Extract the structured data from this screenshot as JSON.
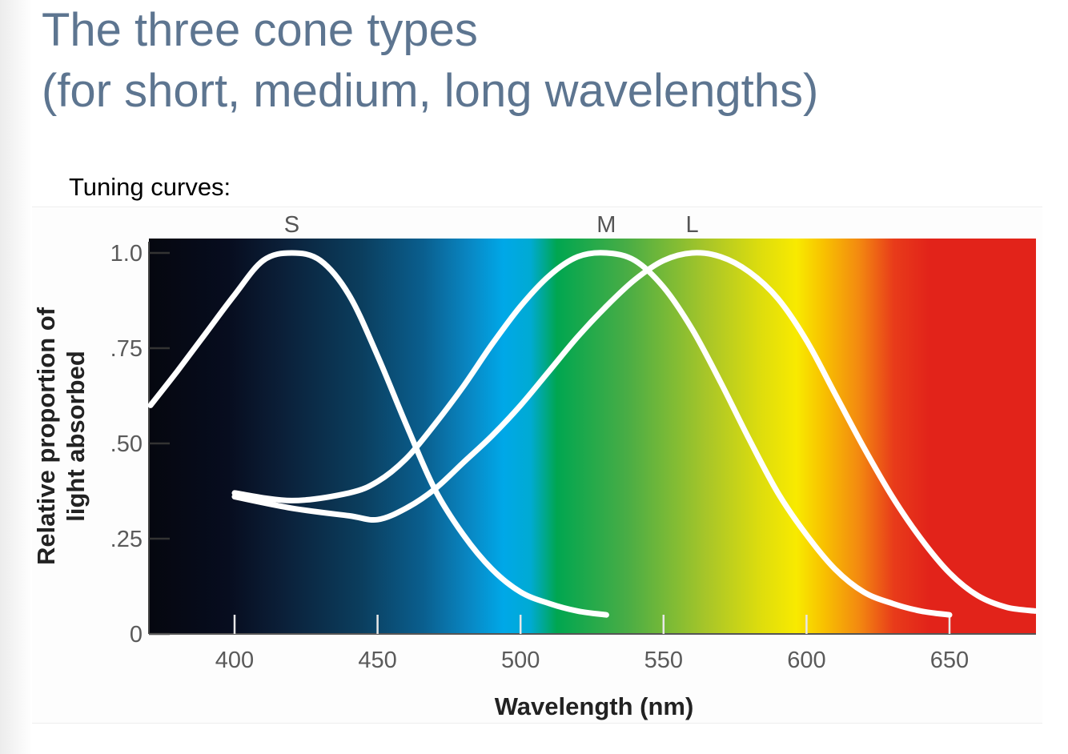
{
  "slide": {
    "title_line1": "The three cone types",
    "title_line2": "(for short, medium, long wavelengths)",
    "subtitle": "Tuning curves:"
  },
  "colors": {
    "title": "#5d7590",
    "curve": "#ffffff",
    "spectrum_dark": "#05070f",
    "spectrum_blue": "#00a8e8",
    "spectrum_green": "#00a650",
    "spectrum_yellow": "#f8ea00",
    "spectrum_red": "#e2231a"
  },
  "chart_data": {
    "type": "line",
    "xlabel": "Wavelength (nm)",
    "ylabel_line1": "Relative proportion of",
    "ylabel_line2": "light absorbed",
    "xlim": [
      370,
      680
    ],
    "ylim": [
      0,
      1.0
    ],
    "x_ticks": [
      {
        "value": 400,
        "label": "400"
      },
      {
        "value": 450,
        "label": "450"
      },
      {
        "value": 500,
        "label": "500"
      },
      {
        "value": 550,
        "label": "550"
      },
      {
        "value": 600,
        "label": "600"
      },
      {
        "value": 650,
        "label": "650"
      }
    ],
    "y_ticks": [
      {
        "value": 0,
        "label": "0"
      },
      {
        "value": 0.25,
        "label": ".25"
      },
      {
        "value": 0.5,
        "label": ".50"
      },
      {
        "value": 0.75,
        "label": ".75"
      },
      {
        "value": 1.0,
        "label": "1.0"
      }
    ],
    "grid": false,
    "background": "visible light spectrum",
    "series": [
      {
        "name": "S",
        "x": [
          370,
          380,
          390,
          400,
          410,
          420,
          430,
          440,
          450,
          460,
          470,
          480,
          490,
          500,
          510,
          520,
          530
        ],
        "y": [
          0.6,
          0.69,
          0.79,
          0.89,
          0.98,
          1.0,
          0.98,
          0.89,
          0.73,
          0.55,
          0.38,
          0.26,
          0.17,
          0.11,
          0.08,
          0.06,
          0.05
        ]
      },
      {
        "name": "M",
        "x": [
          400,
          420,
          440,
          450,
          460,
          470,
          480,
          490,
          500,
          510,
          520,
          530,
          540,
          550,
          560,
          570,
          580,
          590,
          600,
          610,
          620,
          630,
          640,
          650
        ],
        "y": [
          0.37,
          0.35,
          0.37,
          0.4,
          0.46,
          0.55,
          0.65,
          0.76,
          0.86,
          0.94,
          0.99,
          1.0,
          0.98,
          0.91,
          0.8,
          0.66,
          0.51,
          0.37,
          0.26,
          0.17,
          0.11,
          0.08,
          0.06,
          0.05
        ]
      },
      {
        "name": "L",
        "x": [
          400,
          420,
          440,
          450,
          460,
          470,
          480,
          490,
          500,
          510,
          520,
          530,
          540,
          550,
          560,
          570,
          580,
          590,
          600,
          610,
          620,
          630,
          640,
          650,
          660,
          670,
          680
        ],
        "y": [
          0.36,
          0.33,
          0.31,
          0.3,
          0.33,
          0.38,
          0.45,
          0.52,
          0.6,
          0.69,
          0.78,
          0.86,
          0.93,
          0.98,
          1.0,
          0.99,
          0.95,
          0.88,
          0.77,
          0.63,
          0.49,
          0.36,
          0.25,
          0.16,
          0.1,
          0.07,
          0.06
        ]
      }
    ]
  }
}
